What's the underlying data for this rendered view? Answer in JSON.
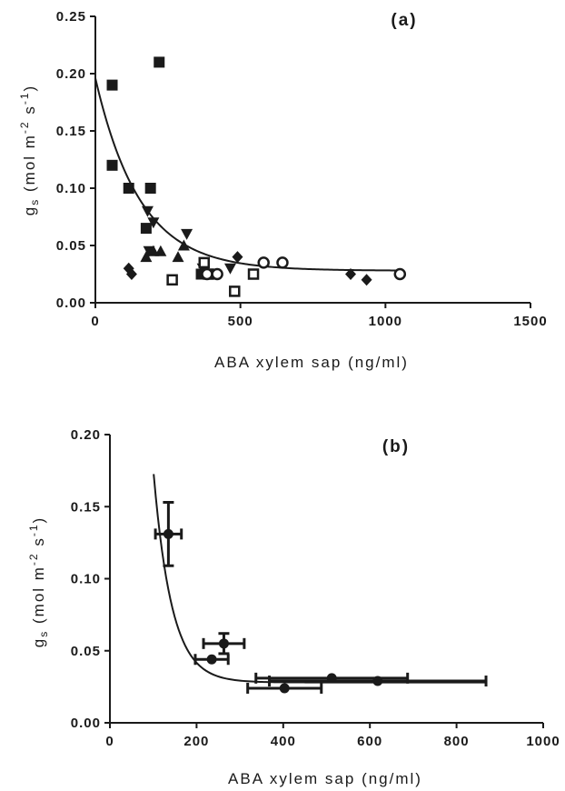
{
  "chart_data": [
    {
      "type": "scatter",
      "panel_label": "(a)",
      "xlabel": "ABA xylem sap (ng/ml)",
      "ylabel": {
        "base": "g",
        "sub": "s",
        "units_open": " (mol m",
        "sup1": "-2",
        "units_mid": " s",
        "sup2": "-1",
        "units_close": ")"
      },
      "xlim": [
        0,
        1500
      ],
      "ylim": [
        0,
        0.25
      ],
      "xticks": [
        0,
        500,
        1000,
        1500
      ],
      "xtick_labels": [
        "0",
        "500",
        "1000",
        "1500"
      ],
      "yticks": [
        0,
        0.05,
        0.1,
        0.15,
        0.2,
        0.25
      ],
      "ytick_labels": [
        "0.00",
        "0.05",
        "0.10",
        "0.15",
        "0.20",
        "0.25"
      ],
      "grid": false,
      "series": [
        {
          "marker": "square-filled",
          "color": "#1a1a1a",
          "points": [
            [
              58,
              0.19
            ],
            [
              58,
              0.12
            ],
            [
              115,
              0.1
            ],
            [
              190,
              0.1
            ],
            [
              175,
              0.065
            ],
            [
              220,
              0.21
            ],
            [
              365,
              0.025
            ],
            [
              375,
              0.035
            ]
          ]
        },
        {
          "marker": "triangle-down",
          "color": "#1a1a1a",
          "points": [
            [
              180,
              0.08
            ],
            [
              200,
              0.07
            ],
            [
              185,
              0.045
            ],
            [
              315,
              0.06
            ],
            [
              370,
              0.03
            ],
            [
              465,
              0.03
            ]
          ]
        },
        {
          "marker": "triangle-up",
          "color": "#1a1a1a",
          "points": [
            [
              175,
              0.04
            ],
            [
              200,
              0.045
            ],
            [
              225,
              0.045
            ],
            [
              285,
              0.04
            ],
            [
              305,
              0.05
            ]
          ]
        },
        {
          "marker": "diamond",
          "color": "#1a1a1a",
          "points": [
            [
              115,
              0.03
            ],
            [
              125,
              0.025
            ],
            [
              490,
              0.04
            ],
            [
              880,
              0.025
            ],
            [
              935,
              0.02
            ]
          ]
        },
        {
          "marker": "square-open",
          "color": "#1a1a1a",
          "points": [
            [
              265,
              0.02
            ],
            [
              390,
              0.025
            ],
            [
              375,
              0.035
            ],
            [
              480,
              0.01
            ],
            [
              545,
              0.025
            ]
          ]
        },
        {
          "marker": "circle-open",
          "color": "#1a1a1a",
          "points": [
            [
              385,
              0.025
            ],
            [
              420,
              0.025
            ],
            [
              580,
              0.035
            ],
            [
              645,
              0.035
            ],
            [
              1050,
              0.025
            ]
          ]
        }
      ],
      "fit_curve": {
        "a": 0.028,
        "b": 0.168,
        "k": 0.0065,
        "x0": 0,
        "x1": 1060
      }
    },
    {
      "type": "scatter",
      "panel_label": "(b)",
      "xlabel": "ABA xylem sap (ng/ml)",
      "ylabel": {
        "base": "g",
        "sub": "s",
        "units_open": " (mol m",
        "sup1": "-2",
        "units_mid": " s",
        "sup2": "-1",
        "units_close": ")"
      },
      "xlim": [
        0,
        1000
      ],
      "ylim": [
        0,
        0.2
      ],
      "xticks": [
        0,
        200,
        400,
        600,
        800,
        1000
      ],
      "xtick_labels": [
        "0",
        "200",
        "400",
        "600",
        "800",
        "1000"
      ],
      "yticks": [
        0,
        0.05,
        0.1,
        0.15,
        0.2
      ],
      "ytick_labels": [
        "0.00",
        "0.05",
        "0.10",
        "0.15",
        "0.20"
      ],
      "grid": false,
      "points": [
        {
          "x": 135,
          "y": 0.131,
          "xerr": 30,
          "yerr": 0.022
        },
        {
          "x": 235,
          "y": 0.044,
          "xerr": 38,
          "yerr": 0.0
        },
        {
          "x": 263,
          "y": 0.055,
          "xerr": 47,
          "yerr": 0.007
        },
        {
          "x": 403,
          "y": 0.024,
          "xerr": 85,
          "yerr": 0.0
        },
        {
          "x": 512,
          "y": 0.031,
          "xerr": 175,
          "yerr": 0.0
        },
        {
          "x": 618,
          "y": 0.029,
          "xerr": 250,
          "yerr": 0.0
        }
      ],
      "fit_curve": {
        "a": 0.028,
        "b": 1.6,
        "k": 0.0238,
        "x0": 101,
        "x1": 870
      }
    }
  ]
}
